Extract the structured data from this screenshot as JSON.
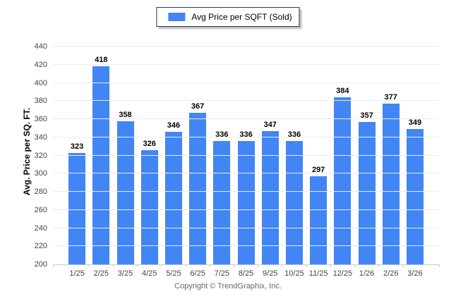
{
  "colors": {
    "bar": "#4285F4",
    "grid": "#ececec",
    "axis_line": "#c9c9c9",
    "tick_label": "#444444",
    "value_label": "#000000",
    "footer": "#666666",
    "legend_border": "#2b3a55",
    "page_bg": "#ffffff"
  },
  "footer": {
    "copyright": "Copyright © TrendGraphix, Inc."
  },
  "chart_data": {
    "type": "bar",
    "title": "",
    "categories": [
      "1/25",
      "2/25",
      "3/25",
      "4/25",
      "5/25",
      "6/25",
      "7/25",
      "8/25",
      "9/25",
      "10/25",
      "11/25",
      "12/25",
      "1/26",
      "2/26",
      "3/26"
    ],
    "series": [
      {
        "name": "Avg Price per SQFT (Sold)",
        "values": [
          323,
          418,
          358,
          326,
          346,
          367,
          336,
          336,
          347,
          336,
          297,
          384,
          357,
          377,
          349
        ]
      }
    ],
    "xlabel": "",
    "ylabel": "Avg. Price per SQ. FT.",
    "ylim": [
      200,
      440
    ],
    "yticks": [
      200,
      220,
      240,
      260,
      280,
      300,
      320,
      340,
      360,
      380,
      400,
      420,
      440
    ],
    "grid": "horizontal",
    "legend_position": "top",
    "bar_value_labels": true
  }
}
